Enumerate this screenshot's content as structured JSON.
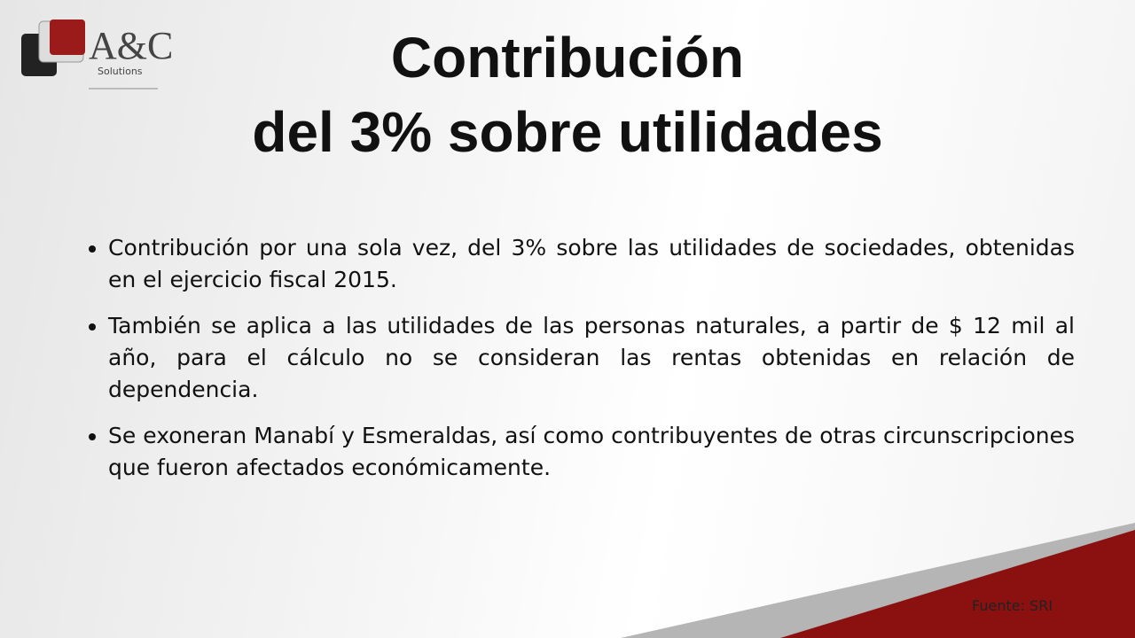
{
  "logo": {
    "brand": "A&C",
    "tagline": "Solutions"
  },
  "title": {
    "line1": "Contribución",
    "line2": "del 3% sobre utilidades"
  },
  "bullets": [
    "Contribución por una sola vez, del 3% sobre las utilidades de sociedades, obtenidas en el ejercicio fiscal 2015.",
    "También se aplica a las utilidades de las personas naturales, a partir de $ 12 mil al año, para el cálculo no se consideran las rentas obtenidas en relación de dependencia.",
    "Se exoneran Manabí y Esmeraldas, así como contribuyentes de otras circunscripciones que fueron afectados económicamente."
  ],
  "source": "Fuente: SRI"
}
